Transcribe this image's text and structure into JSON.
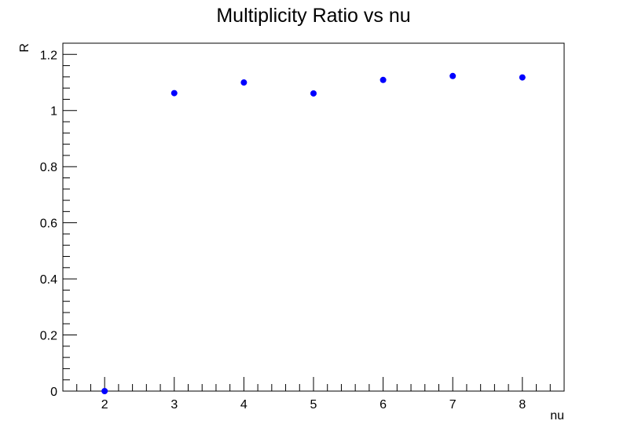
{
  "chart_data": {
    "type": "scatter",
    "title": "Multiplicity Ratio vs nu",
    "xlabel": "nu",
    "ylabel": "R",
    "xlim": [
      1.4,
      8.6
    ],
    "ylim": [
      0,
      1.24
    ],
    "x_ticks": [
      2,
      3,
      4,
      5,
      6,
      7,
      8
    ],
    "y_ticks": [
      0,
      0.2,
      0.4,
      0.6,
      0.8,
      1,
      1.2
    ],
    "x_tick_labels": [
      "2",
      "3",
      "4",
      "5",
      "6",
      "7",
      "8"
    ],
    "y_tick_labels": [
      "0",
      "0.2",
      "0.4",
      "0.6",
      "0.8",
      "1",
      "1.2"
    ],
    "grid": false,
    "legend": "none",
    "marker_color": "#0000ff",
    "points": [
      {
        "x": 2,
        "y": 0
      },
      {
        "x": 3,
        "y": 1.062
      },
      {
        "x": 4,
        "y": 1.1
      },
      {
        "x": 5,
        "y": 1.061
      },
      {
        "x": 6,
        "y": 1.109
      },
      {
        "x": 7,
        "y": 1.123
      },
      {
        "x": 8,
        "y": 1.118
      }
    ]
  }
}
